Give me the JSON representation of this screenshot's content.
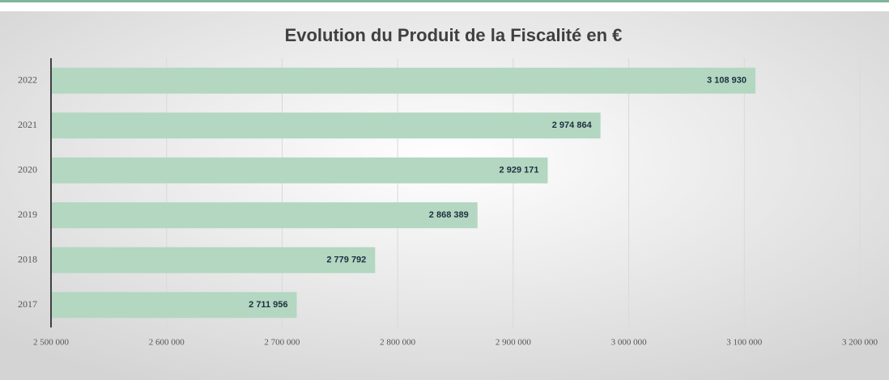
{
  "chart_data": {
    "type": "bar",
    "orientation": "horizontal",
    "title": "Evolution du Produit de la Fiscalité en €",
    "categories": [
      "2022",
      "2021",
      "2020",
      "2019",
      "2018",
      "2017"
    ],
    "values": [
      3108930,
      2974864,
      2929171,
      2868389,
      2779792,
      2711956
    ],
    "value_labels": [
      "3 108 930",
      "2 974 864",
      "2 929 171",
      "2 868 389",
      "2 779 792",
      "2 711 956"
    ],
    "color": "#b3d7c1",
    "xlim": [
      2500000,
      3200000
    ],
    "xticks": [
      {
        "value": 2500000,
        "label": "2 500 000"
      },
      {
        "value": 2600000,
        "label": "2 600 000"
      },
      {
        "value": 2700000,
        "label": "2 700 000"
      },
      {
        "value": 2800000,
        "label": "2 800 000"
      },
      {
        "value": 2900000,
        "label": "2 900 000"
      },
      {
        "value": 3000000,
        "label": "3 000 000"
      },
      {
        "value": 3100000,
        "label": "3 100 000"
      },
      {
        "value": 3200000,
        "label": "3 200 000"
      }
    ],
    "grid": true
  }
}
